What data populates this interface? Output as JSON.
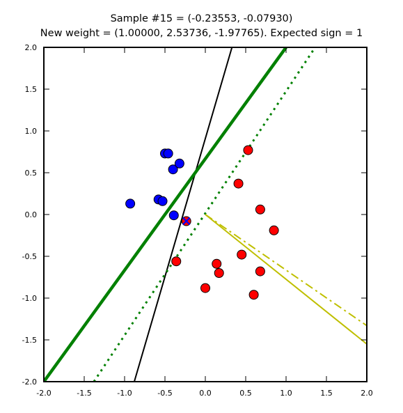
{
  "chart_data": {
    "type": "scatter",
    "title": "Sample #15 = (-0.23553, -0.07930)",
    "subtitle": "New weight = (1.00000, 2.53736, -1.97765). Expected sign = 1",
    "xlim": [
      -2.0,
      2.0
    ],
    "ylim": [
      -2.0,
      2.0
    ],
    "x_ticks": [
      "-2.0",
      "-1.5",
      "-1.0",
      "-0.5",
      "0.0",
      "0.5",
      "1.0",
      "1.5",
      "2.0"
    ],
    "y_ticks": [
      "2.0",
      "1.5",
      "1.0",
      "0.5",
      "0.0",
      "-0.5",
      "-1.0",
      "-1.5",
      "-2.0"
    ],
    "grid": false,
    "colors": {
      "blue_points": "#0000ff",
      "red_points": "#ff0000",
      "green_lines": "#008000",
      "yellow_lines": "#bfbf00",
      "black_line": "#000000"
    },
    "series": [
      {
        "kind": "points",
        "color": "#0000ff",
        "points": [
          [
            -0.93,
            0.13
          ],
          [
            -0.5,
            0.73
          ],
          [
            -0.46,
            0.73
          ],
          [
            -0.4,
            0.54
          ],
          [
            -0.32,
            0.61
          ],
          [
            -0.58,
            0.18
          ],
          [
            -0.53,
            0.16
          ],
          [
            -0.39,
            -0.01
          ]
        ]
      },
      {
        "kind": "points",
        "color": "#ff0000",
        "points": [
          [
            0.53,
            0.77
          ],
          [
            0.41,
            0.37
          ],
          [
            0.68,
            0.06
          ],
          [
            0.85,
            -0.19
          ],
          [
            0.45,
            -0.48
          ],
          [
            0.14,
            -0.59
          ],
          [
            0.17,
            -0.7
          ],
          [
            0.68,
            -0.68
          ],
          [
            0.0,
            -0.88
          ],
          [
            0.6,
            -0.96
          ],
          [
            -0.36,
            -0.56
          ]
        ]
      },
      {
        "kind": "highlight",
        "color": "#ff0000",
        "point": [
          -0.23553,
          -0.0793
        ]
      },
      {
        "kind": "line",
        "color": "#000000",
        "style": "solid",
        "width": 2,
        "from": [
          -0.88,
          -2.0
        ],
        "to": [
          0.33,
          2.0
        ]
      },
      {
        "kind": "line",
        "color": "#008000",
        "style": "solid",
        "width": 4.5,
        "from": [
          -2.0,
          -2.0
        ],
        "to": [
          1.0,
          2.0
        ]
      },
      {
        "kind": "line",
        "color": "#008000",
        "style": "dotted",
        "width": 3,
        "from": [
          -1.38,
          -2.0
        ],
        "to": [
          1.36,
          2.0
        ]
      },
      {
        "kind": "line",
        "color": "#bfbf00",
        "style": "solid",
        "width": 2,
        "from": [
          0.0,
          0.0
        ],
        "to": [
          2.0,
          -1.55
        ]
      },
      {
        "kind": "line",
        "color": "#bfbf00",
        "style": "dashdot",
        "width": 2,
        "from": [
          0.0,
          0.0
        ],
        "to": [
          2.0,
          -1.33
        ]
      }
    ]
  }
}
